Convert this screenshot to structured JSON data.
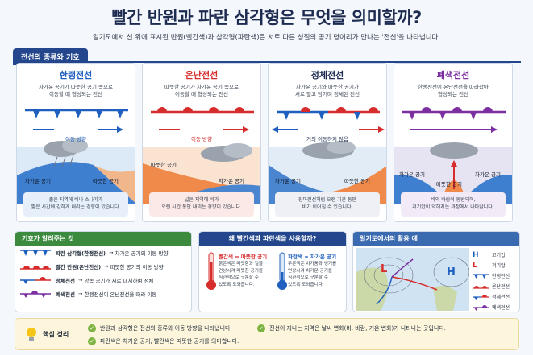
{
  "header": {
    "title": "빨간 반원과 파란 삼각형은 무엇을 의미할까?",
    "subtitle": "일기도에서 선 위에 표시된 반원(빨간색)과 삼각형(파란색)은 서로 다른 성질의 공기 덩어리가 만나는 '전선'을 나타냅니다."
  },
  "section_tab": "전선의 종류와 기호",
  "fronts": [
    {
      "name": "한랭전선",
      "color": "#1f5fbf",
      "desc1": "차가운 공기가 따뜻한 공기 쪽으로",
      "desc2": "이동할 때 형성되는 전선",
      "move": "이동 방향",
      "cold": "차가운 공기",
      "warm": "따뜻한 공기",
      "box1": "좁은 지역에 비나 소나기가",
      "box2": "짧은 시간에 강하게 내리는 경향이 있습니다.",
      "box_bg": "#e6effa"
    },
    {
      "name": "온난전선",
      "color": "#d62c2c",
      "desc1": "따뜻한 공기가 차가운 공기 쪽으로",
      "desc2": "이동할 때 형성되는 전선",
      "move": "이동 방향",
      "cold": "차가운 공기",
      "warm": "따뜻한 공기",
      "box1": "넓은 지역에 비가",
      "box2": "오랜 시간 동안 내리는 경향이 있습니다.",
      "box_bg": "#fbe9e7"
    },
    {
      "name": "정체전선",
      "color": "#1d2b50",
      "desc1": "차가운 공기와 따뜻한 공기가",
      "desc2": "서로 밀고 당기며 정체된 전선",
      "move": "거의 이동하지 않음",
      "cold": "차가운 공기",
      "warm": "따뜻한 공기",
      "box1": "장마전선처럼 오랜 기간 동안",
      "box2": "비가 이어질 수 있습니다.",
      "box_bg": "#eef0f5"
    },
    {
      "name": "폐색전선",
      "color": "#7b2fa0",
      "desc1": "한랭전선이 온난전선을 따라잡아",
      "desc2": "형성되는 전선",
      "move": "",
      "cold": "차가운 공기",
      "warm": "따뜻한 공기",
      "box1": "비와 바람이 동반되며,",
      "box2": "저기압이 약해지는 과정에서 나타납니다.",
      "box_bg": "#f3eaf7"
    }
  ],
  "symbols_card": {
    "title": "기호가 알려주는 것",
    "rows": [
      {
        "label": "파란 삼각형(한랭전선)",
        "text": "차가운 공기의 이동 방향"
      },
      {
        "label": "빨간 반원(온난전선)",
        "text": "따뜻한 공기의 이동 방향"
      },
      {
        "label": "정체전선",
        "text": "양쪽 공기가 서로 대치하며 정체"
      },
      {
        "label": "폐색전선",
        "text": "한랭전선이 온난전선을 따라 이동"
      }
    ]
  },
  "why_card": {
    "title": "왜 빨간색과 파란색을 사용할까?",
    "red_head": "빨간색 = 따뜻한 공기",
    "red_text": [
      "붉은색은 따뜻함과 열을",
      "연상시켜 따뜻한 공기를",
      "직관적으로 구분할 수",
      "있도록 도와줍니다."
    ],
    "blue_head": "파란색 = 차가운 공기",
    "blue_text": [
      "푸른색은 차가움과 냉기를",
      "연상시켜 차가운 공기를",
      "직관적으로 구분할 수",
      "있도록 도와줍니다."
    ]
  },
  "map_card": {
    "title": "일기도에서의 활용 예",
    "L": "L",
    "H": "H",
    "legend": [
      {
        "sym": "H",
        "text": "고기압"
      },
      {
        "sym": "L",
        "text": "저기압"
      },
      {
        "sym": "cold",
        "text": "한랭전선"
      },
      {
        "sym": "warm",
        "text": "온난전선"
      },
      {
        "sym": "stat",
        "text": "정체전선"
      },
      {
        "sym": "occ",
        "text": "폐색전선"
      }
    ]
  },
  "summary": {
    "label": "핵심 정리",
    "items": [
      "반원과 삼각형은 전선의 종류와 이동 방향을 나타냅니다.",
      "전선이 지나는 지역은 날씨 변화(비, 바람, 기온 변화)가 나타나는 곳입니다.",
      "파란색은 차가운 공기, 빨간색은 따뜻한 공기를 의미합니다."
    ]
  },
  "colors": {
    "cold": "#1f5fbf",
    "warm": "#d62c2c",
    "occluded": "#7b2fa0",
    "navy": "#23468c"
  }
}
